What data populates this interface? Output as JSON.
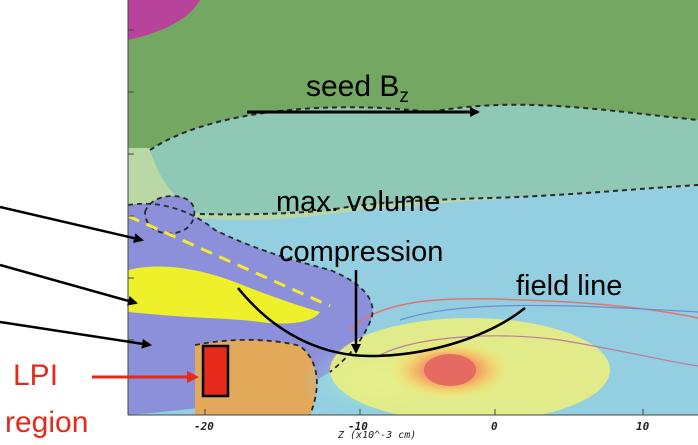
{
  "labels": {
    "seed_text": "seed B",
    "seed_sub": "z",
    "max_volume_line1": "max. volume",
    "max_volume_line2": "compression",
    "field_line": "field line",
    "lpi_line1": "LPI",
    "lpi_line2": "region"
  },
  "axis": {
    "ticks": [
      "-20",
      "-10",
      "0",
      "10"
    ],
    "title": "Z (x10^-3 cm)"
  },
  "colors": {
    "arrow": "#000000",
    "lpi_marker": "#e52a1c",
    "laser_path_dashed": "#f5e935",
    "contour_dashed": "#2a2a2a"
  }
}
